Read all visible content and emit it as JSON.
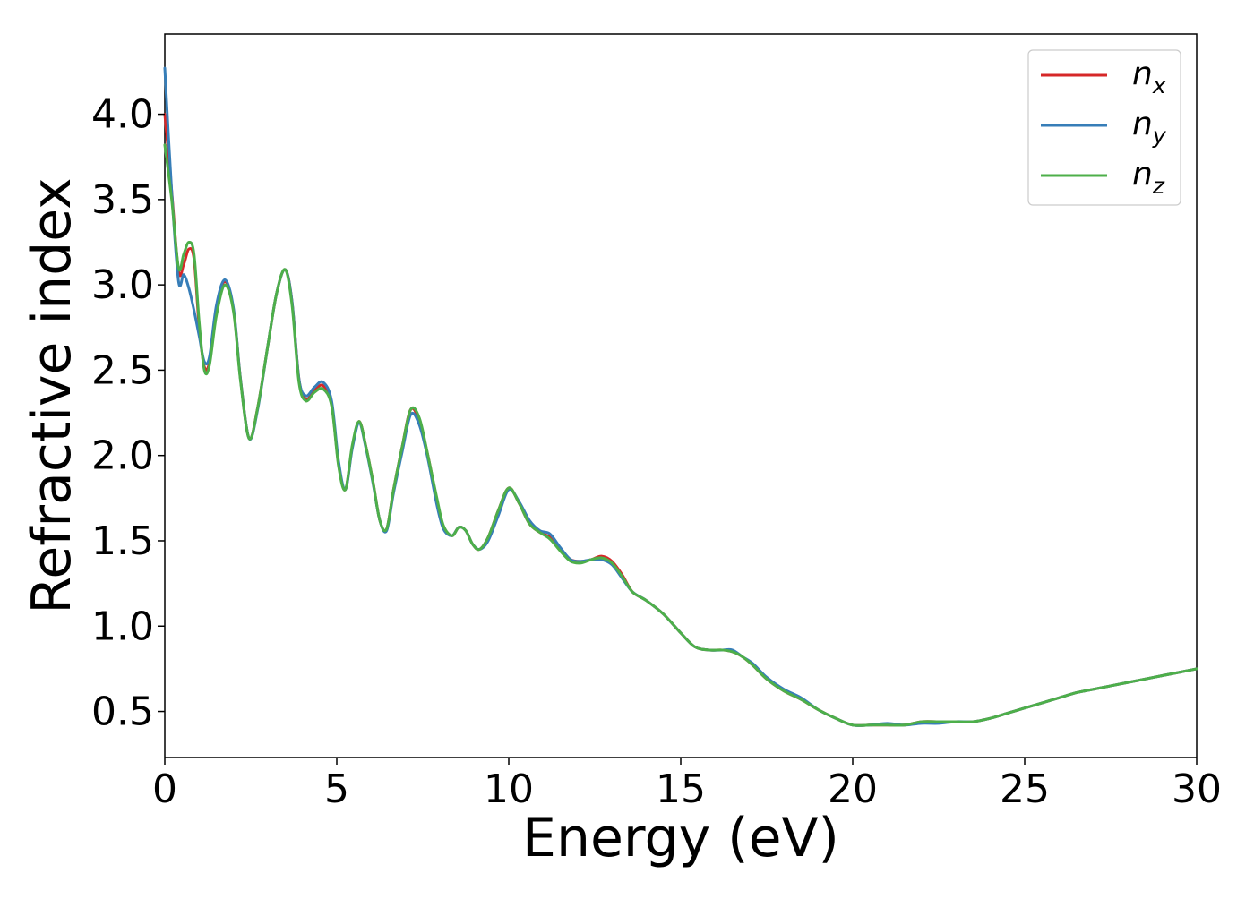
{
  "chart_data": {
    "type": "line",
    "title": "",
    "xlabel": "Energy (eV)",
    "ylabel": "Refractive index",
    "xlim": [
      0,
      30
    ],
    "ylim": [
      0.23,
      4.47
    ],
    "xticks": [
      0,
      5,
      10,
      15,
      20,
      25,
      30
    ],
    "xtick_labels": [
      "0",
      "5",
      "10",
      "15",
      "20",
      "25",
      "30"
    ],
    "yticks": [
      0.5,
      1.0,
      1.5,
      2.0,
      2.5,
      3.0,
      3.5,
      4.0
    ],
    "ytick_labels": [
      "0.5",
      "1.0",
      "1.5",
      "2.0",
      "2.5",
      "3.0",
      "3.5",
      "4.0"
    ],
    "grid": false,
    "legend_position": "top-right",
    "series": [
      {
        "name": "n_x",
        "legend_base": "n",
        "legend_sub": "x",
        "color": "#d62728",
        "x": [
          0.0,
          0.2,
          0.4,
          0.55,
          0.7,
          0.85,
          1.0,
          1.15,
          1.3,
          1.5,
          1.75,
          2.0,
          2.2,
          2.45,
          2.7,
          3.0,
          3.25,
          3.5,
          3.7,
          3.9,
          4.1,
          4.35,
          4.6,
          4.85,
          5.05,
          5.25,
          5.45,
          5.65,
          5.85,
          6.05,
          6.25,
          6.45,
          6.65,
          6.9,
          7.15,
          7.4,
          7.65,
          7.9,
          8.1,
          8.35,
          8.55,
          8.75,
          8.95,
          9.15,
          9.4,
          9.7,
          10.0,
          10.3,
          10.6,
          10.9,
          11.2,
          11.5,
          11.8,
          12.1,
          12.4,
          12.7,
          13.0,
          13.3,
          13.6,
          14.0,
          14.5,
          15.0,
          15.4,
          15.8,
          16.2,
          16.5,
          16.8,
          17.1,
          17.5,
          18.0,
          18.5,
          19.0,
          19.5,
          20.0,
          20.5,
          21.0,
          21.5,
          22.0,
          22.5,
          23.0,
          23.5,
          24.0,
          24.5,
          25.0,
          25.5,
          26.0,
          26.5,
          27.0,
          27.5,
          28.0,
          28.5,
          29.0,
          29.5,
          30.0
        ],
        "y": [
          4.0,
          3.55,
          3.08,
          3.12,
          3.21,
          3.15,
          2.75,
          2.52,
          2.55,
          2.85,
          3.02,
          2.85,
          2.45,
          2.1,
          2.28,
          2.65,
          2.95,
          3.09,
          2.9,
          2.45,
          2.33,
          2.38,
          2.41,
          2.3,
          1.95,
          1.8,
          2.05,
          2.2,
          2.05,
          1.85,
          1.62,
          1.57,
          1.8,
          2.05,
          2.27,
          2.2,
          2.0,
          1.75,
          1.58,
          1.53,
          1.58,
          1.56,
          1.48,
          1.45,
          1.52,
          1.68,
          1.81,
          1.72,
          1.6,
          1.55,
          1.52,
          1.45,
          1.39,
          1.38,
          1.39,
          1.41,
          1.38,
          1.3,
          1.2,
          1.15,
          1.07,
          0.96,
          0.88,
          0.86,
          0.86,
          0.85,
          0.82,
          0.77,
          0.69,
          0.62,
          0.57,
          0.51,
          0.46,
          0.42,
          0.42,
          0.42,
          0.42,
          0.44,
          0.44,
          0.44,
          0.44,
          0.46,
          0.49,
          0.52,
          0.55,
          0.58,
          0.61,
          0.63,
          0.65,
          0.67,
          0.69,
          0.71,
          0.73,
          0.75
        ]
      },
      {
        "name": "n_y",
        "legend_base": "n",
        "legend_sub": "y",
        "color": "#377eb8",
        "x": [
          0.0,
          0.2,
          0.4,
          0.55,
          0.7,
          0.85,
          1.0,
          1.15,
          1.3,
          1.5,
          1.75,
          2.0,
          2.2,
          2.45,
          2.7,
          3.0,
          3.25,
          3.5,
          3.7,
          3.9,
          4.1,
          4.35,
          4.6,
          4.85,
          5.05,
          5.25,
          5.45,
          5.65,
          5.85,
          6.05,
          6.25,
          6.45,
          6.65,
          6.9,
          7.15,
          7.4,
          7.65,
          7.9,
          8.1,
          8.35,
          8.55,
          8.75,
          8.95,
          9.15,
          9.4,
          9.7,
          10.0,
          10.3,
          10.6,
          10.9,
          11.2,
          11.5,
          11.8,
          12.1,
          12.4,
          12.7,
          13.0,
          13.3,
          13.6,
          14.0,
          14.5,
          15.0,
          15.4,
          15.8,
          16.2,
          16.5,
          16.8,
          17.1,
          17.5,
          18.0,
          18.5,
          19.0,
          19.5,
          20.0,
          20.5,
          21.0,
          21.5,
          22.0,
          22.5,
          23.0,
          23.5,
          24.0,
          24.5,
          25.0,
          25.5,
          26.0,
          26.5,
          27.0,
          27.5,
          28.0,
          28.5,
          29.0,
          29.5,
          30.0
        ],
        "y": [
          4.27,
          3.55,
          3.02,
          3.06,
          2.98,
          2.85,
          2.7,
          2.55,
          2.58,
          2.88,
          3.03,
          2.86,
          2.45,
          2.1,
          2.27,
          2.65,
          2.95,
          3.09,
          2.9,
          2.45,
          2.35,
          2.4,
          2.43,
          2.32,
          1.97,
          1.8,
          2.04,
          2.19,
          2.04,
          1.84,
          1.62,
          1.56,
          1.78,
          2.02,
          2.24,
          2.18,
          1.98,
          1.72,
          1.57,
          1.53,
          1.58,
          1.56,
          1.48,
          1.45,
          1.5,
          1.65,
          1.8,
          1.73,
          1.62,
          1.56,
          1.54,
          1.46,
          1.39,
          1.38,
          1.39,
          1.39,
          1.36,
          1.28,
          1.2,
          1.15,
          1.07,
          0.96,
          0.88,
          0.86,
          0.86,
          0.86,
          0.82,
          0.78,
          0.7,
          0.63,
          0.58,
          0.51,
          0.46,
          0.42,
          0.42,
          0.43,
          0.42,
          0.43,
          0.43,
          0.44,
          0.44,
          0.46,
          0.49,
          0.52,
          0.55,
          0.58,
          0.61,
          0.63,
          0.65,
          0.67,
          0.69,
          0.71,
          0.73,
          0.75
        ]
      },
      {
        "name": "n_z",
        "legend_base": "n",
        "legend_sub": "z",
        "color": "#4daf4a",
        "x": [
          0.0,
          0.2,
          0.4,
          0.55,
          0.7,
          0.85,
          1.0,
          1.15,
          1.3,
          1.5,
          1.75,
          2.0,
          2.2,
          2.45,
          2.7,
          3.0,
          3.25,
          3.5,
          3.7,
          3.9,
          4.1,
          4.35,
          4.6,
          4.85,
          5.05,
          5.25,
          5.45,
          5.65,
          5.85,
          6.05,
          6.25,
          6.45,
          6.65,
          6.9,
          7.15,
          7.4,
          7.65,
          7.9,
          8.1,
          8.35,
          8.55,
          8.75,
          8.95,
          9.15,
          9.4,
          9.7,
          10.0,
          10.3,
          10.6,
          10.9,
          11.2,
          11.5,
          11.8,
          12.1,
          12.4,
          12.7,
          13.0,
          13.3,
          13.6,
          14.0,
          14.5,
          15.0,
          15.4,
          15.8,
          16.2,
          16.5,
          16.8,
          17.1,
          17.5,
          18.0,
          18.5,
          19.0,
          19.5,
          20.0,
          20.5,
          21.0,
          21.5,
          22.0,
          22.5,
          23.0,
          23.5,
          24.0,
          24.5,
          25.0,
          25.5,
          26.0,
          26.5,
          27.0,
          27.5,
          28.0,
          28.5,
          29.0,
          29.5,
          30.0
        ],
        "y": [
          3.82,
          3.5,
          3.1,
          3.18,
          3.25,
          3.18,
          2.78,
          2.5,
          2.53,
          2.82,
          3.0,
          2.84,
          2.44,
          2.1,
          2.28,
          2.65,
          2.95,
          3.09,
          2.88,
          2.43,
          2.32,
          2.37,
          2.39,
          2.29,
          1.94,
          1.8,
          2.06,
          2.2,
          2.05,
          1.85,
          1.62,
          1.57,
          1.8,
          2.05,
          2.27,
          2.22,
          2.0,
          1.76,
          1.59,
          1.53,
          1.58,
          1.56,
          1.48,
          1.45,
          1.52,
          1.68,
          1.81,
          1.72,
          1.6,
          1.55,
          1.51,
          1.44,
          1.38,
          1.37,
          1.39,
          1.4,
          1.37,
          1.29,
          1.2,
          1.15,
          1.07,
          0.96,
          0.88,
          0.86,
          0.86,
          0.85,
          0.82,
          0.77,
          0.69,
          0.62,
          0.57,
          0.51,
          0.46,
          0.42,
          0.42,
          0.42,
          0.42,
          0.44,
          0.44,
          0.44,
          0.44,
          0.46,
          0.49,
          0.52,
          0.55,
          0.58,
          0.61,
          0.63,
          0.65,
          0.67,
          0.69,
          0.71,
          0.73,
          0.75
        ]
      }
    ]
  }
}
